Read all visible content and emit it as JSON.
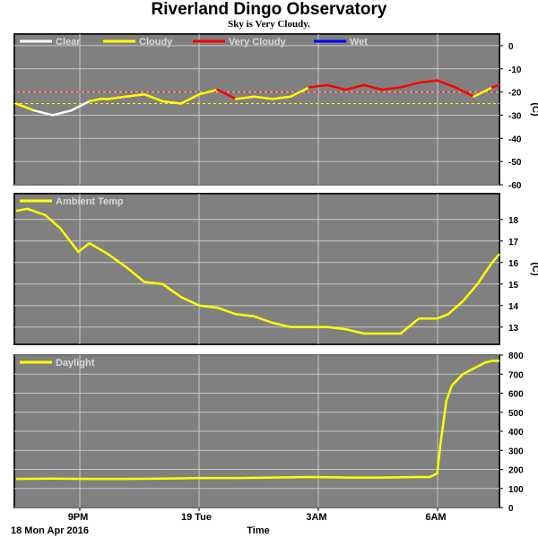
{
  "title": "Riverland Dingo Observatory",
  "subtitle": "Sky is Very Cloudy.",
  "date_label": "18 Mon Apr 2016",
  "xlabel": "Time",
  "x_ticks": [
    "9PM",
    "19 Tue",
    "3AM",
    "6AM"
  ],
  "colors": {
    "panel_bg": "#808080",
    "frame": "#1c1c1c",
    "grid": "#c8c8c8",
    "legend_text": "#d8d8d8",
    "clear": "#ffffff",
    "cloudy": "#ffff00",
    "very_cloudy": "#ff0000",
    "wet": "#0000ff"
  },
  "chart_data": [
    {
      "type": "line",
      "name": "sky",
      "legend": [
        {
          "label": "Clear",
          "color": "#ffffff"
        },
        {
          "label": "Cloudy",
          "color": "#ffff00"
        },
        {
          "label": "Very Cloudy",
          "color": "#ff0000"
        },
        {
          "label": "Wet",
          "color": "#0000ff"
        }
      ],
      "ylabel": "(C)",
      "ylim": [
        -60,
        5
      ],
      "y_ticks": [
        "0",
        "-10",
        "-20",
        "-30",
        "-40",
        "-50",
        "-60"
      ],
      "thresholds": [
        {
          "value": -20,
          "color": "#ff0000"
        },
        {
          "value": -25,
          "color": "#ffff00"
        }
      ],
      "x": [
        0,
        0.5,
        1.0,
        1.5,
        2.0,
        2.3,
        2.5,
        3.0,
        3.5,
        4.0,
        4.5,
        5.0,
        5.5,
        6.0,
        6.5,
        7.0,
        7.5,
        8.0,
        8.5,
        9.0,
        9.5,
        10.0,
        10.5,
        11.0,
        11.5,
        12.0,
        12.5,
        13.0,
        13.2
      ],
      "values": [
        -25,
        -28,
        -30,
        -28,
        -24,
        -23,
        -23,
        -22,
        -21,
        -24,
        -25,
        -21,
        -19,
        -23,
        -22,
        -23,
        -22,
        -18,
        -17,
        -19,
        -17,
        -19,
        -18,
        -16,
        -15,
        -18,
        -22,
        -18,
        -17
      ]
    },
    {
      "type": "line",
      "name": "ambient",
      "legend": [
        {
          "label": "Ambient Temp",
          "color": "#ffff00"
        }
      ],
      "ylabel": "(C)",
      "ylim": [
        12.2,
        19.2
      ],
      "y_ticks": [
        "18",
        "17",
        "16",
        "15",
        "14",
        "13"
      ],
      "x": [
        0,
        0.3,
        0.8,
        1.2,
        1.7,
        2.0,
        2.5,
        3.0,
        3.5,
        4.0,
        4.5,
        5.0,
        5.5,
        6.0,
        6.5,
        7.0,
        7.5,
        8.0,
        8.5,
        9.0,
        9.5,
        10.0,
        10.5,
        11.0,
        11.5,
        11.8,
        12.2,
        12.6,
        13.0,
        13.2
      ],
      "values": [
        18.4,
        18.5,
        18.2,
        17.6,
        16.5,
        16.9,
        16.4,
        15.8,
        15.1,
        15.0,
        14.4,
        14.0,
        13.9,
        13.6,
        13.5,
        13.2,
        13.0,
        13.0,
        13.0,
        12.9,
        12.7,
        12.7,
        12.7,
        13.4,
        13.4,
        13.6,
        14.2,
        15.0,
        16.0,
        16.4
      ]
    },
    {
      "type": "line",
      "name": "daylight",
      "legend": [
        {
          "label": "Daylight",
          "color": "#ffff00"
        }
      ],
      "ylabel": "",
      "ylim": [
        0,
        800
      ],
      "y_ticks": [
        "800",
        "700",
        "600",
        "500",
        "400",
        "300",
        "200",
        "100",
        "0"
      ],
      "x": [
        0,
        1,
        2,
        3,
        4,
        5,
        6,
        7,
        8,
        9,
        10,
        11,
        11.3,
        11.5,
        11.6,
        11.75,
        11.9,
        12.2,
        12.5,
        12.8,
        13.0,
        13.2
      ],
      "values": [
        150,
        152,
        150,
        150,
        152,
        155,
        155,
        157,
        160,
        157,
        157,
        160,
        160,
        180,
        350,
        560,
        640,
        700,
        730,
        760,
        770,
        770
      ]
    }
  ]
}
